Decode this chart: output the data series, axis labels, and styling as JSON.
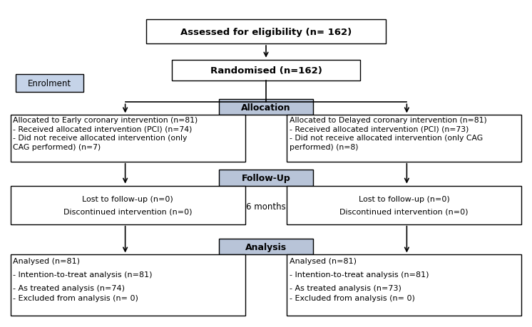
{
  "background_color": "#ffffff",
  "header_face_color": "#b8c4d8",
  "enrolment_face_color": "#c5d3e8",
  "box_edge_color": "#000000",
  "eligibility_text": "Assessed for eligibility (n= 162)",
  "enrolment_text": "Enrolment",
  "randomised_text": "Randomised (n=162)",
  "allocation_text": "Allocation",
  "followup_text": "Follow-Up",
  "sixmonths_text": "6 months",
  "analysis_text": "Analysis",
  "early_alloc_line1": "Allocated to Early coronary intervention (n=81)",
  "early_alloc_line2": "- Received allocated intervention (PCI) (n=74)",
  "early_alloc_line3": "- Did not receive allocated intervention (only",
  "early_alloc_line4": "CAG performed) (n=7)",
  "delayed_alloc_line1": "Allocated to Delayed coronary intervention (n=81)",
  "delayed_alloc_line2": "- Received allocated intervention (PCI) (n=73)",
  "delayed_alloc_line3": "- Did not receive allocated intervention (only CAG",
  "delayed_alloc_line4": "performed) (n=8)",
  "early_followup_line1": "Lost to follow-up (n=0)",
  "early_followup_line2": "Discontinued intervention (n=0)",
  "delayed_followup_line1": "Lost to follow-up (n=0)",
  "delayed_followup_line2": "Discontinued intervention (n=0)",
  "early_analysis_line1": "Analysed (n=81)",
  "early_analysis_line2": "- Intention-to-treat analysis (n=81)",
  "early_analysis_line3": "- As treated analysis (n=74)",
  "early_analysis_line4": "- Excluded from analysis (n= 0)",
  "delayed_analysis_line1": "Analysed (n=81)",
  "delayed_analysis_line2": "- Intention-to-treat analysis (n=81)",
  "delayed_analysis_line3": "- As treated analysis (n=73)",
  "delayed_analysis_line4": "- Excluded from analysis (n= 0)"
}
